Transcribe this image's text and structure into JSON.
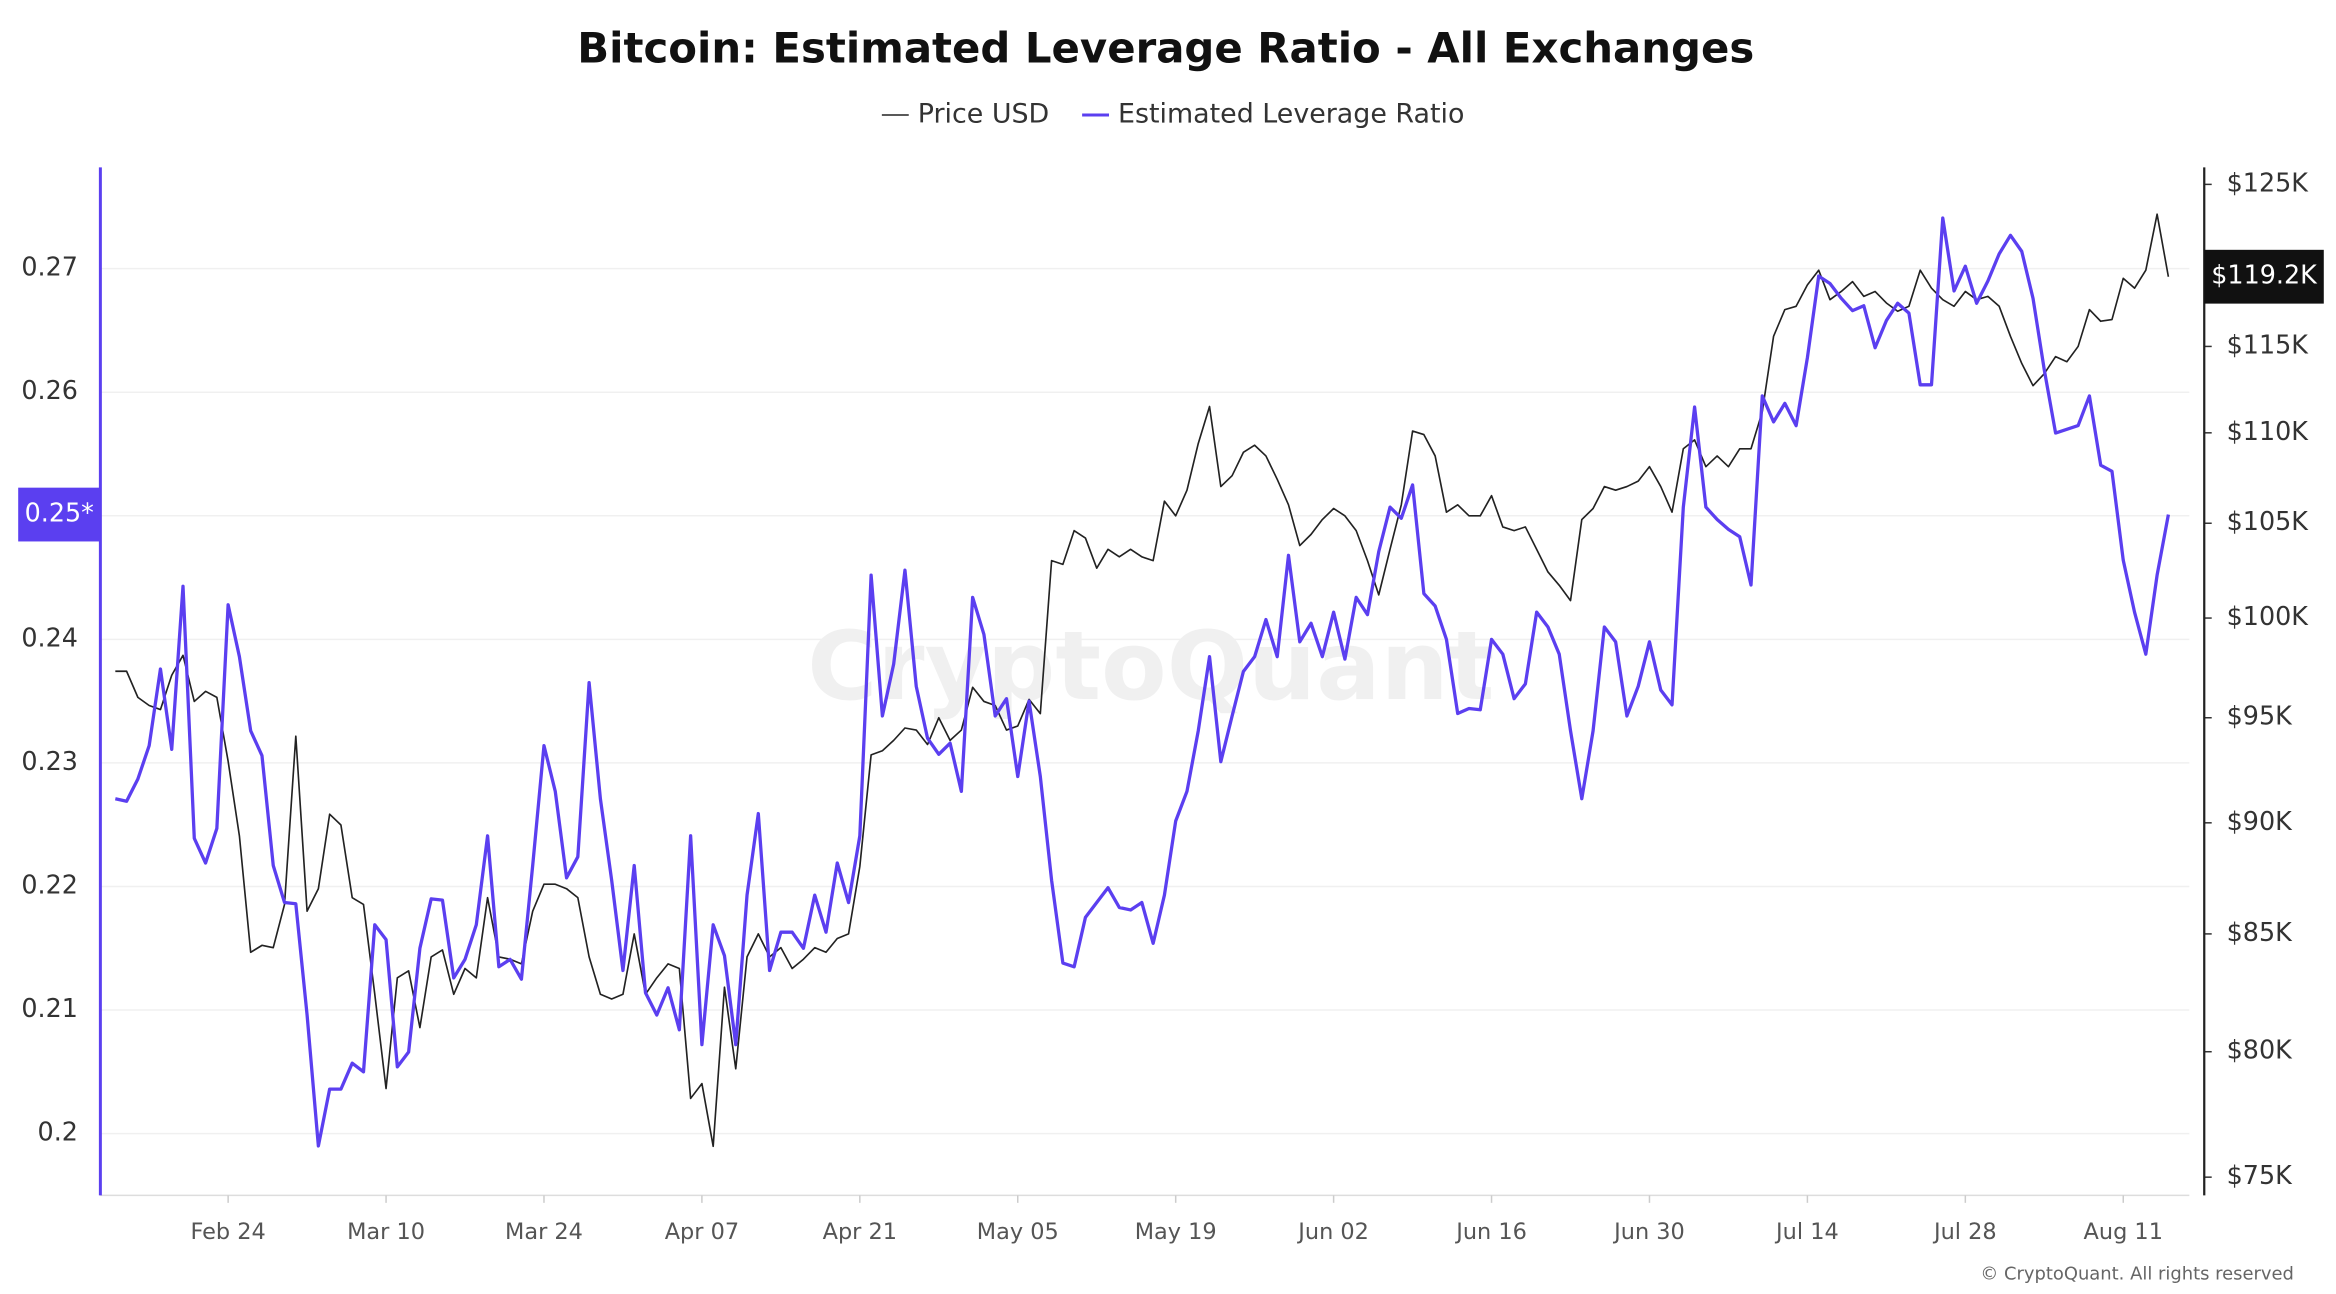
{
  "chart_data": {
    "type": "line",
    "title": "Bitcoin: Estimated Leverage Ratio - All Exchanges",
    "watermark": "CryptoQuant",
    "credit": "© CryptoQuant. All rights reserved",
    "categories": [
      null,
      null,
      null,
      null,
      null,
      null,
      null,
      null,
      null,
      null,
      "Feb 24",
      null,
      null,
      null,
      null,
      null,
      null,
      null,
      null,
      null,
      null,
      null,
      null,
      null,
      "Mar 10",
      null,
      null,
      null,
      null,
      null,
      null,
      null,
      null,
      null,
      null,
      null,
      null,
      null,
      "Mar 24",
      null,
      null,
      null,
      null,
      null,
      null,
      null,
      null,
      null,
      null,
      null,
      null,
      null,
      "Apr 07",
      null,
      null,
      null,
      null,
      null,
      null,
      null,
      null,
      null,
      null,
      null,
      null,
      null,
      "Apr 21",
      null,
      null,
      null,
      null,
      null,
      null,
      null,
      null,
      null,
      null,
      null,
      null,
      null,
      "May 05",
      null,
      null,
      null,
      null,
      null,
      null,
      null,
      null,
      null,
      null,
      null,
      null,
      null,
      "May 19",
      null,
      null,
      null,
      null,
      null,
      null,
      null,
      null,
      null,
      null,
      null,
      null,
      null,
      "Jun 02",
      null,
      null,
      null,
      null,
      null,
      null,
      null,
      null,
      null,
      null,
      null,
      null,
      null,
      "Jun 16",
      null,
      null,
      null,
      null,
      null,
      null,
      null,
      null,
      null,
      null,
      null,
      null,
      null,
      "Jun 30",
      null,
      null,
      null,
      null,
      null,
      null,
      null,
      null,
      null,
      null,
      null,
      null,
      null,
      "Jul 14",
      null,
      null,
      null,
      null,
      null,
      null,
      null,
      null,
      null,
      null,
      null,
      null,
      null,
      "Jul 28",
      null,
      null,
      null,
      null,
      null,
      null,
      null,
      null,
      null,
      null,
      null,
      null,
      null,
      "Aug 11",
      null,
      null,
      null,
      null
    ],
    "ylim": [
      0.195,
      0.2782
    ],
    "yticks": [
      0.2,
      0.21,
      0.22,
      0.23,
      0.24,
      0.25,
      0.26,
      0.27
    ],
    "y2lim": [
      74.3,
      126.1
    ],
    "y2_scale": "log",
    "y2ticks": [
      {
        "value": 75,
        "label": "$75K"
      },
      {
        "value": 80,
        "label": "$80K"
      },
      {
        "value": 85,
        "label": "$85K"
      },
      {
        "value": 90,
        "label": "$90K"
      },
      {
        "value": 95,
        "label": "$95K"
      },
      {
        "value": 100,
        "label": "$100K"
      },
      {
        "value": 105,
        "label": "$105K"
      },
      {
        "value": 110,
        "label": "$110K"
      },
      {
        "value": 115,
        "label": "$115K"
      },
      {
        "value": 125,
        "label": "$125K"
      }
    ],
    "grid": true,
    "legend_position": "top",
    "series": [
      {
        "name": "Price USD",
        "color": "#222222",
        "axis": "y2",
        "last_label": "$119.2K",
        "values": [
          97.3,
          97.3,
          96.0,
          95.6,
          95.4,
          97.1,
          98.1,
          95.8,
          96.3,
          96.0,
          92.9,
          89.4,
          84.2,
          84.5,
          84.4,
          86.3,
          94.1,
          86.0,
          87.0,
          90.4,
          89.9,
          86.6,
          86.3,
          82.4,
          78.5,
          83.1,
          83.4,
          81.0,
          84.0,
          84.3,
          82.4,
          83.5,
          83.1,
          86.6,
          84.0,
          83.9,
          83.7,
          86.0,
          87.2,
          87.2,
          87.0,
          86.6,
          84.0,
          82.4,
          82.2,
          82.4,
          85.0,
          82.4,
          83.1,
          83.7,
          83.5,
          78.1,
          78.7,
          76.2,
          82.7,
          79.3,
          84.0,
          85.0,
          84.0,
          84.4,
          83.5,
          83.9,
          84.4,
          84.2,
          84.8,
          85.0,
          88.0,
          93.2,
          93.4,
          93.9,
          94.5,
          94.4,
          93.7,
          95.0,
          93.9,
          94.4,
          96.5,
          95.8,
          95.6,
          94.4,
          94.6,
          95.9,
          95.2,
          103.0,
          102.8,
          104.6,
          104.2,
          102.6,
          103.6,
          103.2,
          103.6,
          103.2,
          103.0,
          106.2,
          105.4,
          106.8,
          109.4,
          111.5,
          107.0,
          107.6,
          108.9,
          109.3,
          108.7,
          107.4,
          106.0,
          103.8,
          104.4,
          105.2,
          105.8,
          105.4,
          104.6,
          103.0,
          101.2,
          103.6,
          106.0,
          110.1,
          109.9,
          108.7,
          105.6,
          106.0,
          105.4,
          105.4,
          106.5,
          104.8,
          104.6,
          104.8,
          103.6,
          102.4,
          101.7,
          100.9,
          105.2,
          105.8,
          107.0,
          106.8,
          107.0,
          107.3,
          108.1,
          107.0,
          105.6,
          109.1,
          109.6,
          108.1,
          108.7,
          108.1,
          109.1,
          109.1,
          111.2,
          115.6,
          117.2,
          117.4,
          118.7,
          119.6,
          117.8,
          118.3,
          118.9,
          118.0,
          118.3,
          117.6,
          117.1,
          117.4,
          119.6,
          118.5,
          117.8,
          117.4,
          118.3,
          117.8,
          118.0,
          117.4,
          115.6,
          114.0,
          112.7,
          113.4,
          114.4,
          114.1,
          115.0,
          117.2,
          116.5,
          116.6,
          119.1,
          118.5,
          119.6,
          123.1,
          119.2
        ]
      },
      {
        "name": "Estimated Leverage Ratio",
        "color": "#5b3ff0",
        "axis": "y",
        "last_label": "0.25*",
        "values": [
          0.2271,
          0.2269,
          0.2287,
          0.2314,
          0.2376,
          0.2311,
          0.2443,
          0.2239,
          0.2219,
          0.2247,
          0.2428,
          0.2386,
          0.2326,
          0.2306,
          0.2217,
          0.2187,
          0.2186,
          0.2096,
          0.199,
          0.2036,
          0.2036,
          0.2057,
          0.205,
          0.2169,
          0.2157,
          0.2054,
          0.2066,
          0.215,
          0.219,
          0.2189,
          0.2126,
          0.2141,
          0.2169,
          0.2241,
          0.2135,
          0.2141,
          0.2125,
          0.2217,
          0.2314,
          0.2277,
          0.2207,
          0.2224,
          0.2365,
          0.2271,
          0.2205,
          0.2132,
          0.2217,
          0.2114,
          0.2096,
          0.2118,
          0.2084,
          0.2241,
          0.2072,
          0.2169,
          0.2144,
          0.2072,
          0.2193,
          0.2259,
          0.2132,
          0.2163,
          0.2163,
          0.215,
          0.2193,
          0.2163,
          0.2219,
          0.2187,
          0.2241,
          0.2452,
          0.2338,
          0.238,
          0.2456,
          0.2362,
          0.232,
          0.2307,
          0.2316,
          0.2277,
          0.2434,
          0.2404,
          0.2338,
          0.2352,
          0.2289,
          0.235,
          0.2289,
          0.2205,
          0.2138,
          0.2135,
          0.2175,
          0.2187,
          0.2199,
          0.2183,
          0.2181,
          0.2187,
          0.2154,
          0.2193,
          0.2253,
          0.2277,
          0.2326,
          0.2386,
          0.2301,
          0.2338,
          0.2374,
          0.2386,
          0.2416,
          0.2386,
          0.2468,
          0.2398,
          0.2413,
          0.2386,
          0.2422,
          0.2384,
          0.2434,
          0.242,
          0.2471,
          0.2507,
          0.2498,
          0.2525,
          0.2437,
          0.2427,
          0.24,
          0.234,
          0.2344,
          0.2343,
          0.24,
          0.2388,
          0.2352,
          0.2364,
          0.2422,
          0.241,
          0.2388,
          0.2326,
          0.2271,
          0.2326,
          0.241,
          0.2398,
          0.2338,
          0.2362,
          0.2398,
          0.2359,
          0.2347,
          0.2507,
          0.2588,
          0.2507,
          0.2497,
          0.2489,
          0.2483,
          0.2444,
          0.2597,
          0.2576,
          0.2591,
          0.2573,
          0.2628,
          0.2694,
          0.2688,
          0.2676,
          0.2666,
          0.267,
          0.2636,
          0.2658,
          0.2672,
          0.2664,
          0.2606,
          0.2606,
          0.2741,
          0.2682,
          0.2702,
          0.2672,
          0.269,
          0.2712,
          0.2727,
          0.2714,
          0.2676,
          0.2618,
          0.2567,
          0.257,
          0.2573,
          0.2597,
          0.2541,
          0.2536,
          0.2464,
          0.2422,
          0.2388,
          0.2452,
          0.2501
        ]
      }
    ]
  }
}
